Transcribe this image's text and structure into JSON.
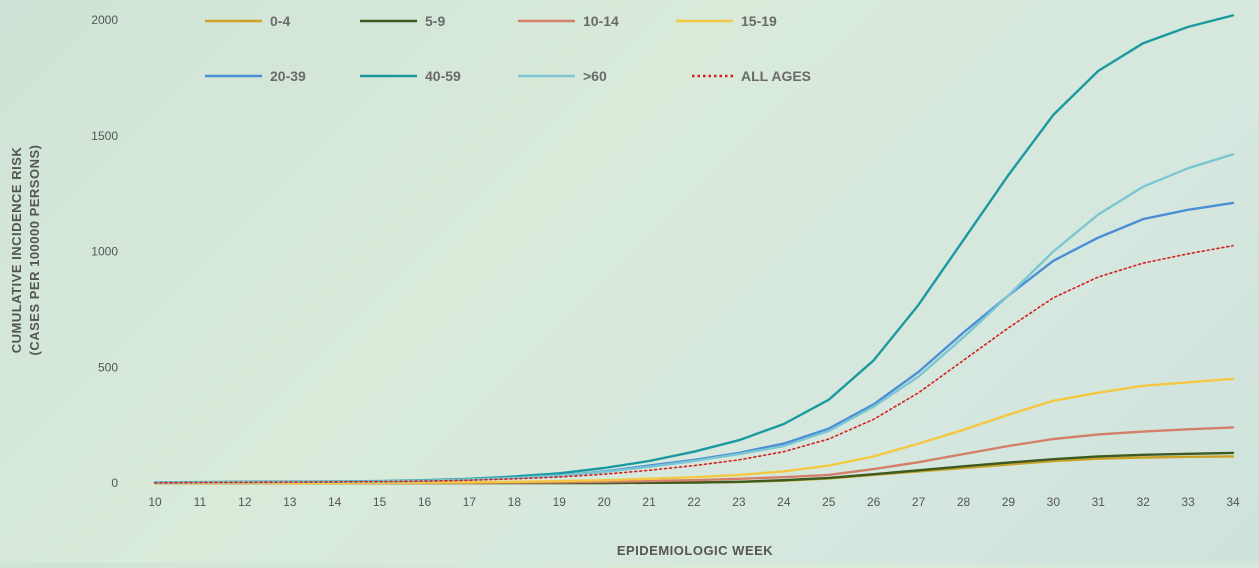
{
  "chart_data": {
    "type": "line",
    "title": "",
    "xlabel": "EPIDEMIOLOGIC WEEK",
    "ylabel_line1": "CUMULATIVE  INCIDENCE RISK",
    "ylabel_line2": "(CASES PER 100000 PERSONS)",
    "ylim": [
      0,
      2000
    ],
    "yticks": [
      0,
      500,
      1000,
      1500,
      2000
    ],
    "x": [
      10,
      11,
      12,
      13,
      14,
      15,
      16,
      17,
      18,
      19,
      20,
      21,
      22,
      23,
      24,
      25,
      26,
      27,
      28,
      29,
      30,
      31,
      32,
      33,
      34
    ],
    "grid": false,
    "legend_position": "top",
    "series": [
      {
        "name": "0-4",
        "color": "#c9a227",
        "dashed": false,
        "values": [
          0,
          0,
          0,
          0,
          0,
          0,
          0,
          0,
          0,
          0,
          0,
          1,
          2,
          4,
          10,
          20,
          35,
          50,
          65,
          80,
          95,
          105,
          110,
          113,
          115
        ]
      },
      {
        "name": "5-9",
        "color": "#3d5a22",
        "dashed": false,
        "values": [
          0,
          0,
          0,
          0,
          0,
          0,
          0,
          0,
          0,
          0,
          0,
          1,
          2,
          5,
          12,
          22,
          38,
          55,
          72,
          88,
          103,
          115,
          122,
          126,
          130
        ]
      },
      {
        "name": "10-14",
        "color": "#d47f6a",
        "dashed": false,
        "values": [
          0,
          0,
          0,
          0,
          0,
          0,
          0,
          1,
          2,
          3,
          5,
          8,
          12,
          18,
          25,
          35,
          60,
          90,
          125,
          160,
          190,
          210,
          222,
          232,
          240
        ]
      },
      {
        "name": "15-19",
        "color": "#f5c842",
        "dashed": false,
        "values": [
          0,
          0,
          0,
          0,
          0,
          1,
          2,
          3,
          5,
          8,
          12,
          18,
          25,
          35,
          50,
          75,
          115,
          170,
          230,
          295,
          355,
          390,
          420,
          435,
          450
        ]
      },
      {
        "name": "20-39",
        "color": "#4a8fd6",
        "dashed": false,
        "values": [
          2,
          3,
          4,
          5,
          6,
          7,
          10,
          15,
          22,
          32,
          50,
          75,
          100,
          130,
          170,
          235,
          340,
          480,
          650,
          810,
          960,
          1060,
          1140,
          1180,
          1210
        ]
      },
      {
        "name": "40-59",
        "color": "#1a9aa0",
        "dashed": false,
        "values": [
          3,
          4,
          5,
          6,
          7,
          8,
          12,
          18,
          28,
          42,
          65,
          95,
          135,
          185,
          255,
          360,
          530,
          770,
          1050,
          1330,
          1590,
          1780,
          1900,
          1970,
          2020
        ]
      },
      {
        "name": ">60",
        "color": "#7cc6d2",
        "dashed": false,
        "values": [
          2,
          3,
          4,
          5,
          6,
          7,
          10,
          15,
          22,
          32,
          48,
          70,
          95,
          125,
          160,
          225,
          330,
          460,
          630,
          810,
          1000,
          1160,
          1280,
          1360,
          1420
        ]
      },
      {
        "name": "ALL AGES",
        "color": "#d42020",
        "dashed": true,
        "values": [
          1,
          2,
          3,
          4,
          5,
          6,
          8,
          12,
          18,
          26,
          38,
          55,
          75,
          100,
          135,
          190,
          275,
          390,
          530,
          670,
          800,
          890,
          950,
          990,
          1025
        ]
      }
    ]
  }
}
